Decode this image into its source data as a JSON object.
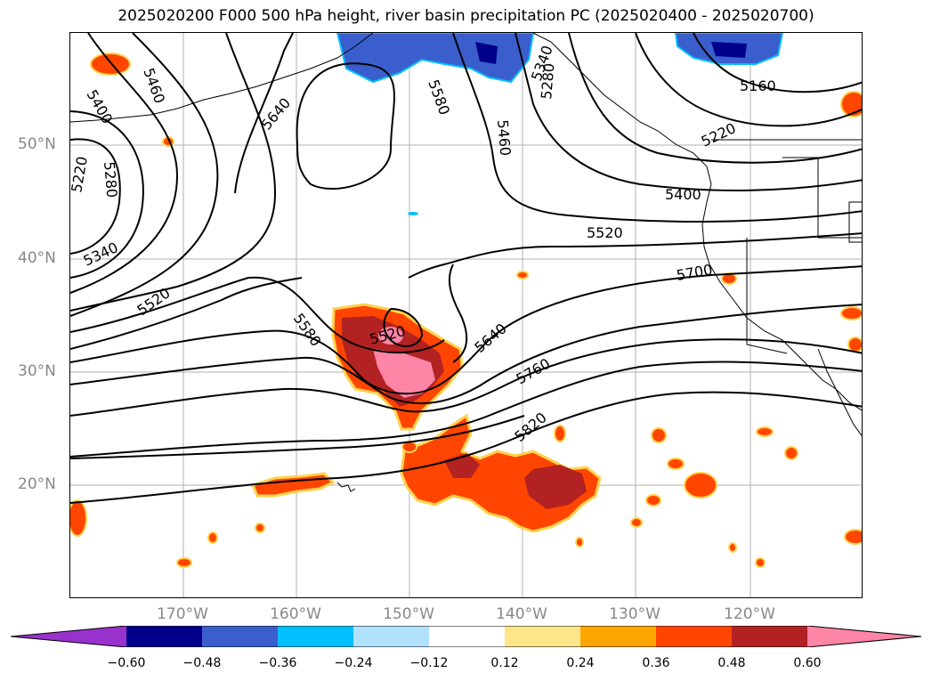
{
  "title": "2025020200 F000 500 hPa height, river basin precipitation PC (2025020400 - 2025020700)",
  "lat_labels": [
    "50°N",
    "40°N",
    "30°N",
    "20°N"
  ],
  "lon_labels": [
    "170°W",
    "160°W",
    "150°W",
    "140°W",
    "130°W",
    "120°W"
  ],
  "contour_labels": [
    "5400",
    "5460",
    "5640",
    "5580",
    "5460",
    "5340",
    "5280",
    "5160",
    "5220",
    "5280",
    "5220",
    "5340",
    "5520",
    "5400",
    "5520",
    "5700",
    "5580",
    "5520",
    "5640",
    "5760",
    "5820"
  ],
  "colorbar": {
    "ticks": [
      "−0.60",
      "−0.48",
      "−0.36",
      "−0.24",
      "−0.12",
      "0.12",
      "0.24",
      "0.36",
      "0.48",
      "0.60"
    ],
    "colors": [
      "#9932cc",
      "#00008b",
      "#3a5fcd",
      "#00bfff",
      "#b0e2ff",
      "#ffffff",
      "#fde68a",
      "#ffa500",
      "#ff4500",
      "#b22222",
      "#ff85a7"
    ]
  },
  "colors": {
    "contour": "#000000",
    "grid": "#b0b0b0",
    "axis_text": "#888888"
  }
}
